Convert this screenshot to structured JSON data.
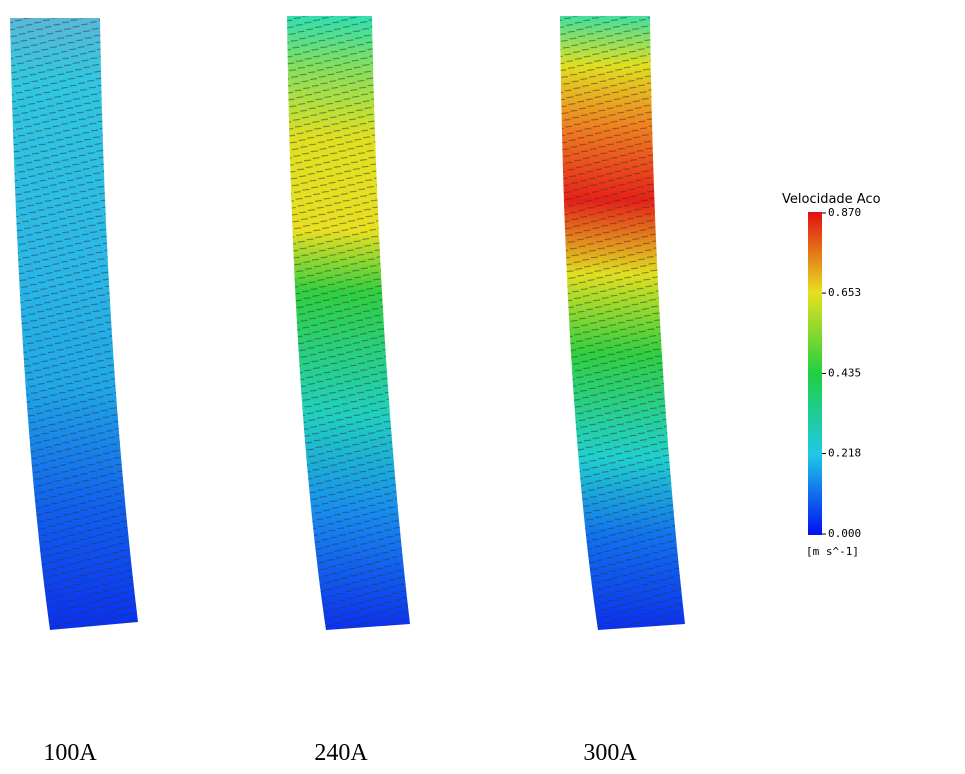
{
  "panels": [
    {
      "label": "100A"
    },
    {
      "label": "240A"
    },
    {
      "label": "300A"
    }
  ],
  "colorbar": {
    "title": "Velocidade  Aco",
    "unit": "[m  s^-1]",
    "ticks": [
      {
        "value": 0.87,
        "label": "0.870"
      },
      {
        "value": 0.653,
        "label": "0.653"
      },
      {
        "value": 0.435,
        "label": "0.435"
      },
      {
        "value": 0.218,
        "label": "0.218"
      },
      {
        "value": 0,
        "label": "0.000"
      }
    ]
  }
}
